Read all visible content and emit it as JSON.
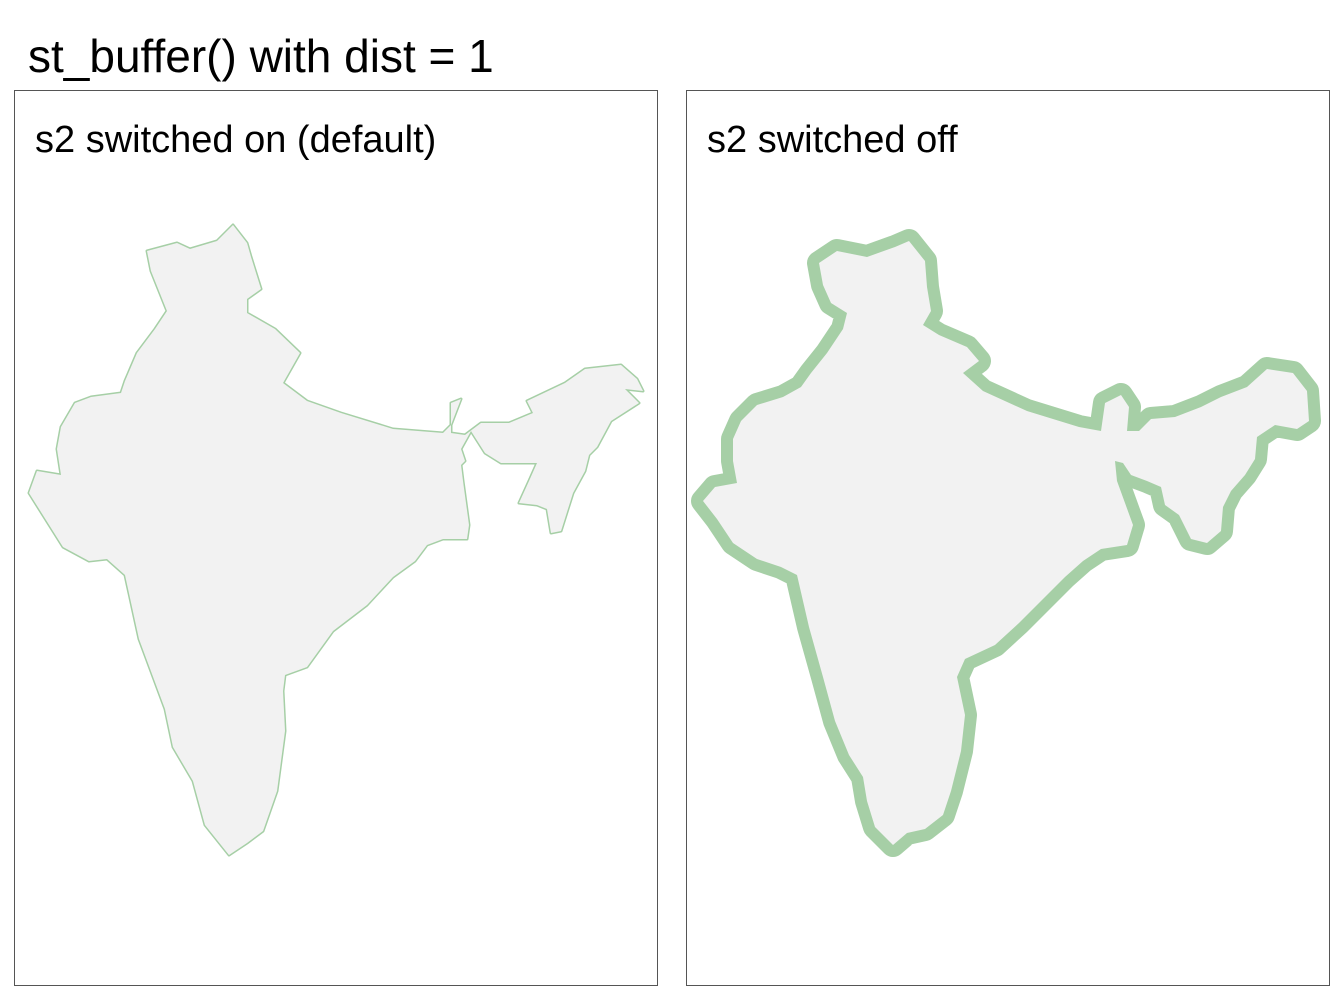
{
  "figure": {
    "title": "st_buffer() with dist = 1"
  },
  "panels": [
    {
      "title": "s2 switched on (default)"
    },
    {
      "title": "s2 switched off"
    }
  ],
  "colors": {
    "country_fill": "#f2f2f2",
    "buffer": "#a6cfa6",
    "panel_border": "#555555"
  }
}
